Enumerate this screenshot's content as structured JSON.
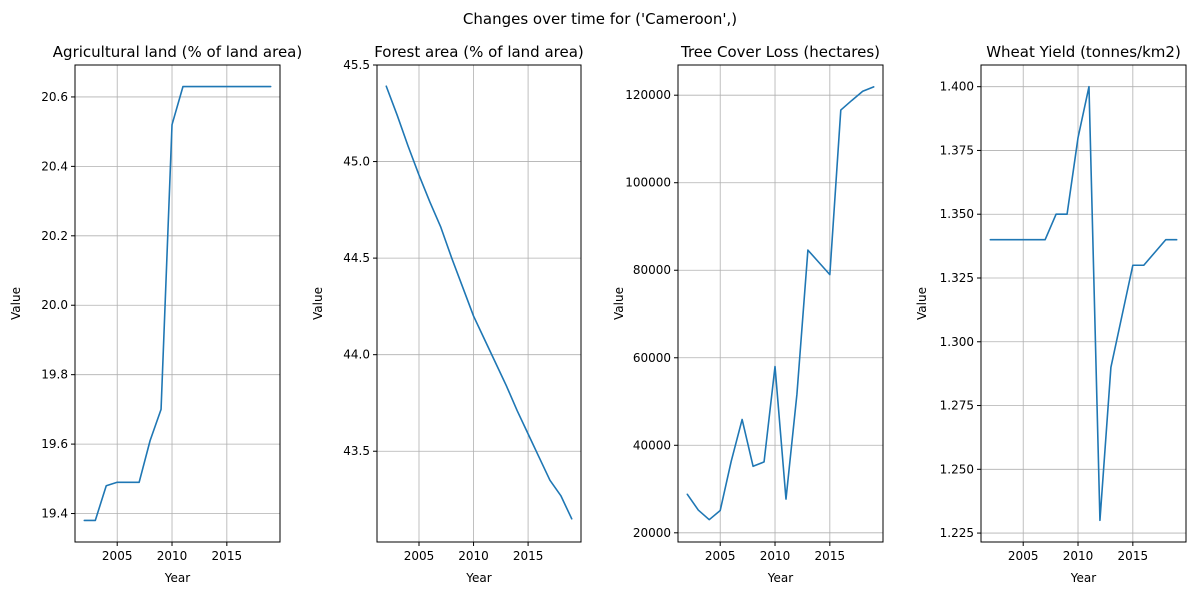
{
  "suptitle": "Changes over time for ('Cameroon',)",
  "line_color": "#1f77b4",
  "chart_data": [
    {
      "type": "line",
      "title": "Agricultural land (% of land area)",
      "xlabel": "Year",
      "ylabel": "Value",
      "grid": true,
      "xlim": [
        2001.15,
        2019.85
      ],
      "ylim": [
        19.318,
        20.692
      ],
      "xticks": [
        2005,
        2010,
        2015
      ],
      "xtick_labels": [
        "2005",
        "2010",
        "2015"
      ],
      "yticks": [
        19.4,
        19.6,
        19.8,
        20.0,
        20.2,
        20.4,
        20.6
      ],
      "ytick_labels": [
        "19.4",
        "19.6",
        "19.8",
        "20.0",
        "20.2",
        "20.4",
        "20.6"
      ],
      "x": [
        2002,
        2003,
        2004,
        2005,
        2006,
        2007,
        2008,
        2009,
        2010,
        2011,
        2012,
        2013,
        2014,
        2015,
        2016,
        2017,
        2018,
        2019
      ],
      "y": [
        19.38,
        19.38,
        19.48,
        19.49,
        19.49,
        19.49,
        19.61,
        19.7,
        20.52,
        20.63,
        20.63,
        20.63,
        20.63,
        20.63,
        20.63,
        20.63,
        20.63,
        20.63
      ]
    },
    {
      "type": "line",
      "title": "Forest area (% of land area)",
      "xlabel": "Year",
      "ylabel": "Value",
      "grid": true,
      "xlim": [
        2001.15,
        2019.85
      ],
      "ylim": [
        43.03,
        45.5
      ],
      "xticks": [
        2005,
        2010,
        2015
      ],
      "xtick_labels": [
        "2005",
        "2010",
        "2015"
      ],
      "yticks": [
        43.5,
        44.0,
        44.5,
        45.0,
        45.5
      ],
      "ytick_labels": [
        "43.5",
        "44.0",
        "44.5",
        "45.0",
        "45.5"
      ],
      "x": [
        2002,
        2003,
        2004,
        2005,
        2006,
        2007,
        2008,
        2009,
        2010,
        2011,
        2012,
        2013,
        2014,
        2015,
        2016,
        2017,
        2018,
        2019
      ],
      "y": [
        45.39,
        45.24,
        45.08,
        44.93,
        44.79,
        44.66,
        44.5,
        44.35,
        44.2,
        44.08,
        43.96,
        43.84,
        43.71,
        43.59,
        43.47,
        43.35,
        43.27,
        43.15
      ]
    },
    {
      "type": "line",
      "title": "Tree Cover Loss (hectares)",
      "xlabel": "Year",
      "ylabel": "Value",
      "grid": true,
      "xlim": [
        2001.15,
        2019.85
      ],
      "ylim": [
        17900,
        126900
      ],
      "xticks": [
        2005,
        2010,
        2015
      ],
      "xtick_labels": [
        "2005",
        "2010",
        "2015"
      ],
      "yticks": [
        20000,
        40000,
        60000,
        80000,
        100000,
        120000
      ],
      "ytick_labels": [
        "20000",
        "40000",
        "60000",
        "80000",
        "100000",
        "120000"
      ],
      "x": [
        2002,
        2003,
        2004,
        2005,
        2006,
        2007,
        2008,
        2009,
        2010,
        2011,
        2012,
        2013,
        2014,
        2015,
        2016,
        2017,
        2018,
        2019
      ],
      "y": [
        28800,
        25200,
        23000,
        25100,
        36300,
        45900,
        35200,
        36200,
        58000,
        27700,
        51700,
        84600,
        81800,
        79000,
        116600,
        118800,
        120900,
        121900
      ]
    },
    {
      "type": "line",
      "title": "Wheat Yield (tonnes/km2)",
      "xlabel": "Year",
      "ylabel": "Value",
      "grid": true,
      "xlim": [
        2001.15,
        2019.85
      ],
      "ylim": [
        1.2215,
        1.4085
      ],
      "xticks": [
        2005,
        2010,
        2015
      ],
      "xtick_labels": [
        "2005",
        "2010",
        "2015"
      ],
      "yticks": [
        1.225,
        1.25,
        1.275,
        1.3,
        1.325,
        1.35,
        1.375,
        1.4
      ],
      "ytick_labels": [
        "1.225",
        "1.250",
        "1.275",
        "1.300",
        "1.325",
        "1.350",
        "1.375",
        "1.400"
      ],
      "x": [
        2002,
        2003,
        2004,
        2005,
        2006,
        2007,
        2008,
        2009,
        2010,
        2011,
        2012,
        2013,
        2014,
        2015,
        2016,
        2017,
        2018,
        2019
      ],
      "y": [
        1.34,
        1.34,
        1.34,
        1.34,
        1.34,
        1.34,
        1.35,
        1.35,
        1.38,
        1.4,
        1.23,
        1.29,
        1.31,
        1.33,
        1.33,
        1.335,
        1.34,
        1.34
      ]
    }
  ]
}
